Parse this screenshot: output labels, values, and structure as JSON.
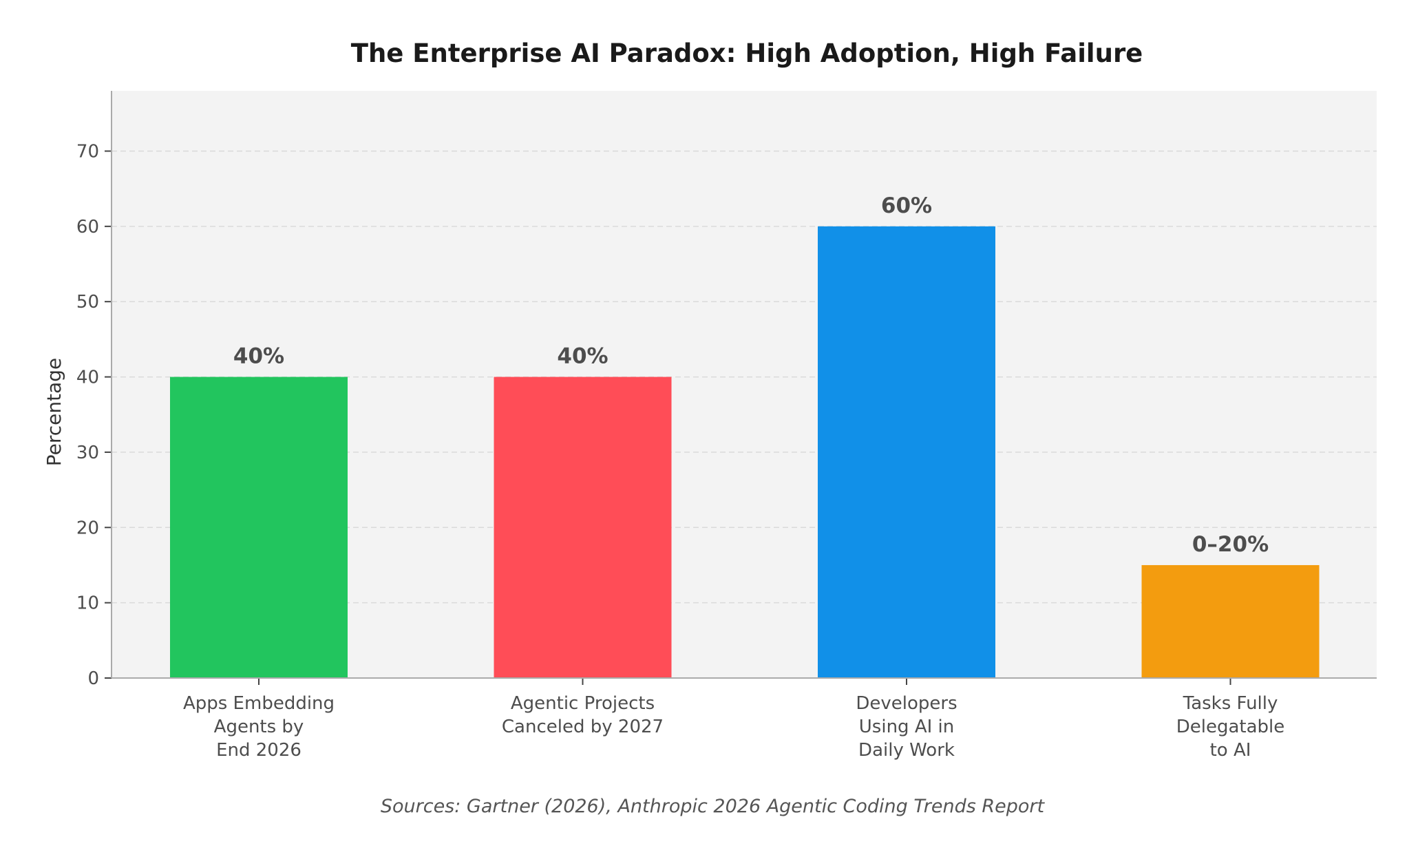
{
  "chart_data": {
    "type": "bar",
    "title": "The Enterprise AI Paradox: High Adoption, High Failure",
    "xlabel": "",
    "ylabel": "Percentage",
    "ylim": [
      0,
      78
    ],
    "yticks": [
      0,
      10,
      20,
      30,
      40,
      50,
      60,
      70
    ],
    "grid": "y-dashed",
    "categories": [
      [
        "Apps Embedding",
        "Agents by",
        "End 2026"
      ],
      [
        "Agentic Projects",
        "Canceled by 2027"
      ],
      [
        "Developers",
        "Using AI in",
        "Daily Work"
      ],
      [
        "Tasks Fully",
        "Delegatable",
        "to AI"
      ]
    ],
    "values": [
      40,
      40,
      60,
      15
    ],
    "data_labels": [
      "40%",
      "40%",
      "60%",
      "0–20%"
    ],
    "colors": [
      "#22c55e",
      "#ff4d57",
      "#1190e8",
      "#f39c0f"
    ],
    "background": "#f3f3f3",
    "footnote": "Sources: Gartner (2026), Anthropic 2026 Agentic Coding Trends Report"
  }
}
